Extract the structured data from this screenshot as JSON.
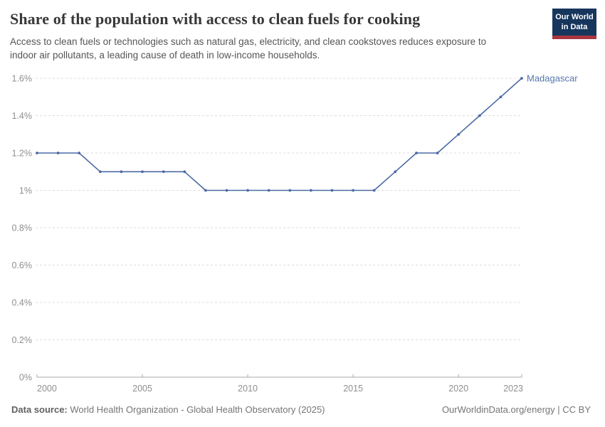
{
  "header": {
    "title": "Share of the population with access to clean fuels for cooking",
    "subtitle": "Access to clean fuels or technologies such as natural gas, electricity, and clean cookstoves reduces exposure to indoor air pollutants, a leading cause of death in low-income households.",
    "logo": {
      "line1": "Our World",
      "line2": "in Data"
    }
  },
  "chart_data": {
    "type": "line",
    "title": "Share of the population with access to clean fuels for cooking",
    "xlabel": "",
    "ylabel": "",
    "xlim": [
      2000,
      2023
    ],
    "ylim": [
      0,
      1.6
    ],
    "x_ticks": [
      2000,
      2005,
      2010,
      2015,
      2020,
      2023
    ],
    "y_ticks": [
      0,
      0.2,
      0.4,
      0.6,
      0.8,
      1.0,
      1.2,
      1.4,
      1.6
    ],
    "y_tick_labels": [
      "0%",
      "0.2%",
      "0.4%",
      "0.6%",
      "0.8%",
      "1%",
      "1.2%",
      "1.4%",
      "1.6%"
    ],
    "grid": "horizontal-dashed",
    "legend_position": "end-of-line-label",
    "series": [
      {
        "name": "Madagascar",
        "x": [
          2000,
          2001,
          2002,
          2003,
          2004,
          2005,
          2006,
          2007,
          2008,
          2009,
          2010,
          2011,
          2012,
          2013,
          2014,
          2015,
          2016,
          2017,
          2018,
          2019,
          2020,
          2021,
          2022,
          2023
        ],
        "values": [
          1.2,
          1.2,
          1.2,
          1.1,
          1.1,
          1.1,
          1.1,
          1.1,
          1.0,
          1.0,
          1.0,
          1.0,
          1.0,
          1.0,
          1.0,
          1.0,
          1.0,
          1.1,
          1.2,
          1.2,
          1.3,
          1.4,
          1.5,
          1.6
        ]
      }
    ]
  },
  "footer": {
    "datasource_label": "Data source:",
    "datasource_text": " World Health Organization - Global Health Observatory (2025)",
    "credit": "OurWorldinData.org/energy | CC BY"
  },
  "colors": {
    "line": "#4c6aa5",
    "end_label": "#5577ad",
    "grid": "#dcdcdc",
    "axis_line": "#a8a8a8",
    "axis_text": "#8f8f8f",
    "logo_bg": "#17365d",
    "logo_stripe": "#a93640"
  }
}
